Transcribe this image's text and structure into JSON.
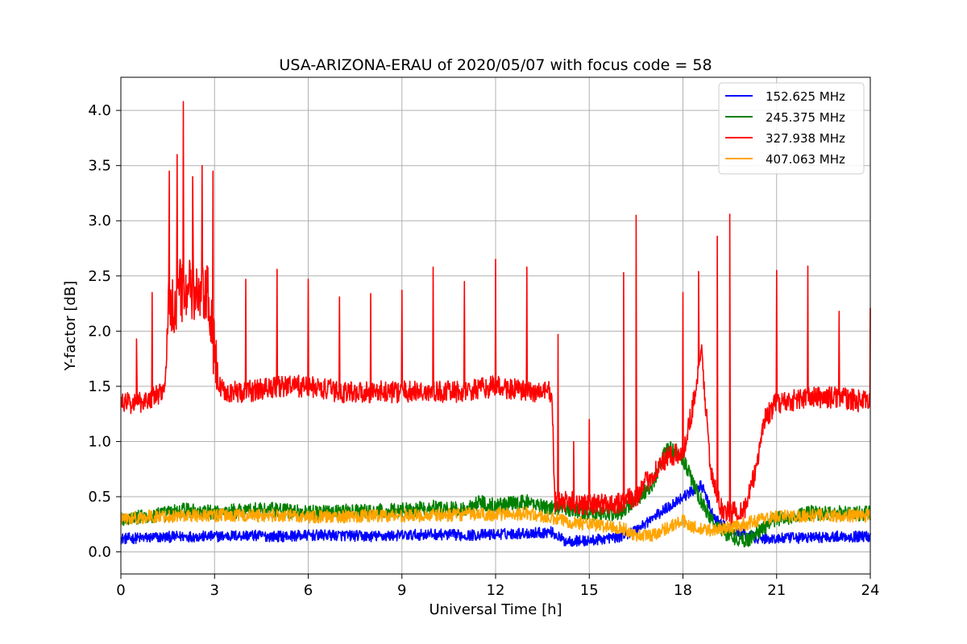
{
  "chart_data": {
    "type": "line",
    "title": "USA-ARIZONA-ERAU of 2020/05/07 with focus code = 58",
    "xlabel": "Universal Time [h]",
    "ylabel": "Y-factor [dB]",
    "xlim": [
      0,
      24
    ],
    "ylim": [
      -0.2,
      4.3
    ],
    "xticks": [
      0,
      3,
      6,
      9,
      12,
      15,
      18,
      21,
      24
    ],
    "xtick_labels": [
      "0",
      "3",
      "6",
      "9",
      "12",
      "15",
      "18",
      "21",
      "24"
    ],
    "yticks": [
      0.0,
      0.5,
      1.0,
      1.5,
      2.0,
      2.5,
      3.0,
      3.5,
      4.0
    ],
    "ytick_labels": [
      "0.0",
      "0.5",
      "1.0",
      "1.5",
      "2.0",
      "2.5",
      "3.0",
      "3.5",
      "4.0"
    ],
    "grid": true,
    "legend_position": "top-right",
    "series": [
      {
        "name": "152.625 MHz",
        "color": "#0000ff",
        "x": [
          0,
          1,
          2,
          3,
          4,
          5,
          6,
          7,
          8,
          9,
          10,
          11,
          12,
          13,
          13.8,
          14.2,
          15,
          16,
          16.5,
          17,
          17.5,
          18,
          18.3,
          18.6,
          19,
          19.5,
          20,
          20.5,
          21,
          22,
          23,
          24
        ],
        "y": [
          0.12,
          0.13,
          0.14,
          0.14,
          0.15,
          0.14,
          0.15,
          0.15,
          0.14,
          0.15,
          0.16,
          0.15,
          0.16,
          0.17,
          0.18,
          0.1,
          0.1,
          0.14,
          0.2,
          0.3,
          0.4,
          0.5,
          0.55,
          0.6,
          0.3,
          0.2,
          0.15,
          0.12,
          0.12,
          0.13,
          0.14,
          0.14
        ],
        "noise": 0.05
      },
      {
        "name": "245.375 MHz",
        "color": "#008000",
        "x": [
          0,
          1,
          2,
          3,
          4,
          5,
          6,
          7,
          8,
          9,
          10,
          11,
          11.5,
          12,
          13,
          13.8,
          14.2,
          15,
          16,
          17,
          17.5,
          18,
          18.5,
          19,
          19.5,
          20,
          20.5,
          21,
          22,
          23,
          24
        ],
        "y": [
          0.3,
          0.32,
          0.38,
          0.35,
          0.38,
          0.38,
          0.35,
          0.37,
          0.36,
          0.38,
          0.4,
          0.38,
          0.45,
          0.42,
          0.45,
          0.4,
          0.4,
          0.35,
          0.35,
          0.6,
          0.95,
          0.85,
          0.5,
          0.25,
          0.15,
          0.1,
          0.2,
          0.3,
          0.35,
          0.35,
          0.35
        ],
        "noise": 0.07
      },
      {
        "name": "327.938 MHz",
        "color": "#ff0000",
        "x": [
          0,
          0.5,
          1,
          1.4,
          1.5,
          2,
          2.5,
          2.8,
          3.1,
          3.5,
          4,
          5,
          6,
          7,
          8,
          9,
          10,
          11,
          12,
          13,
          13.8,
          13.9,
          14.5,
          15,
          16,
          16.5,
          17,
          17.5,
          18,
          18.3,
          18.6,
          18.9,
          19.2,
          19.5,
          20,
          20.3,
          20.6,
          21,
          22,
          23,
          24
        ],
        "y": [
          1.35,
          1.35,
          1.4,
          1.45,
          2.2,
          2.4,
          2.3,
          2.3,
          1.5,
          1.45,
          1.45,
          1.5,
          1.5,
          1.45,
          1.45,
          1.45,
          1.45,
          1.45,
          1.5,
          1.45,
          1.45,
          0.45,
          0.45,
          0.42,
          0.45,
          0.5,
          0.7,
          0.85,
          0.9,
          1.3,
          1.8,
          0.7,
          0.4,
          0.35,
          0.4,
          0.7,
          1.2,
          1.35,
          1.4,
          1.4,
          1.35
        ],
        "noise": 0.1,
        "spikes": [
          [
            0.5,
            1.93
          ],
          [
            1.0,
            2.35
          ],
          [
            1.55,
            3.45
          ],
          [
            1.8,
            3.6
          ],
          [
            2.0,
            4.08
          ],
          [
            2.3,
            3.4
          ],
          [
            2.6,
            3.5
          ],
          [
            2.95,
            3.45
          ],
          [
            4.0,
            2.47
          ],
          [
            5.0,
            2.56
          ],
          [
            6.0,
            2.47
          ],
          [
            7.0,
            2.31
          ],
          [
            8.0,
            2.34
          ],
          [
            9.0,
            2.37
          ],
          [
            10.0,
            2.58
          ],
          [
            11.0,
            2.45
          ],
          [
            12.0,
            2.65
          ],
          [
            13.0,
            2.58
          ],
          [
            14.0,
            1.97
          ],
          [
            14.5,
            1.0
          ],
          [
            15.0,
            1.2
          ],
          [
            16.1,
            2.53
          ],
          [
            16.5,
            3.05
          ],
          [
            18.0,
            2.35
          ],
          [
            18.5,
            2.54
          ],
          [
            19.1,
            2.86
          ],
          [
            19.5,
            3.06
          ],
          [
            21.0,
            2.55
          ],
          [
            22.0,
            2.59
          ],
          [
            23.0,
            2.18
          ],
          [
            24.0,
            2.21
          ]
        ]
      },
      {
        "name": "407.063 MHz",
        "color": "#ffa500",
        "x": [
          0,
          1,
          2,
          3,
          4,
          5,
          6,
          7,
          8,
          9,
          10,
          11,
          12,
          13,
          13.8,
          14.5,
          15,
          16,
          16.5,
          17,
          17.5,
          18,
          18.5,
          19,
          19.5,
          20,
          20.5,
          21,
          22,
          23,
          24
        ],
        "y": [
          0.3,
          0.32,
          0.33,
          0.33,
          0.33,
          0.33,
          0.32,
          0.32,
          0.33,
          0.33,
          0.33,
          0.34,
          0.34,
          0.35,
          0.3,
          0.27,
          0.25,
          0.22,
          0.15,
          0.15,
          0.22,
          0.28,
          0.2,
          0.2,
          0.22,
          0.25,
          0.3,
          0.32,
          0.33,
          0.33,
          0.33
        ],
        "noise": 0.06
      }
    ]
  }
}
